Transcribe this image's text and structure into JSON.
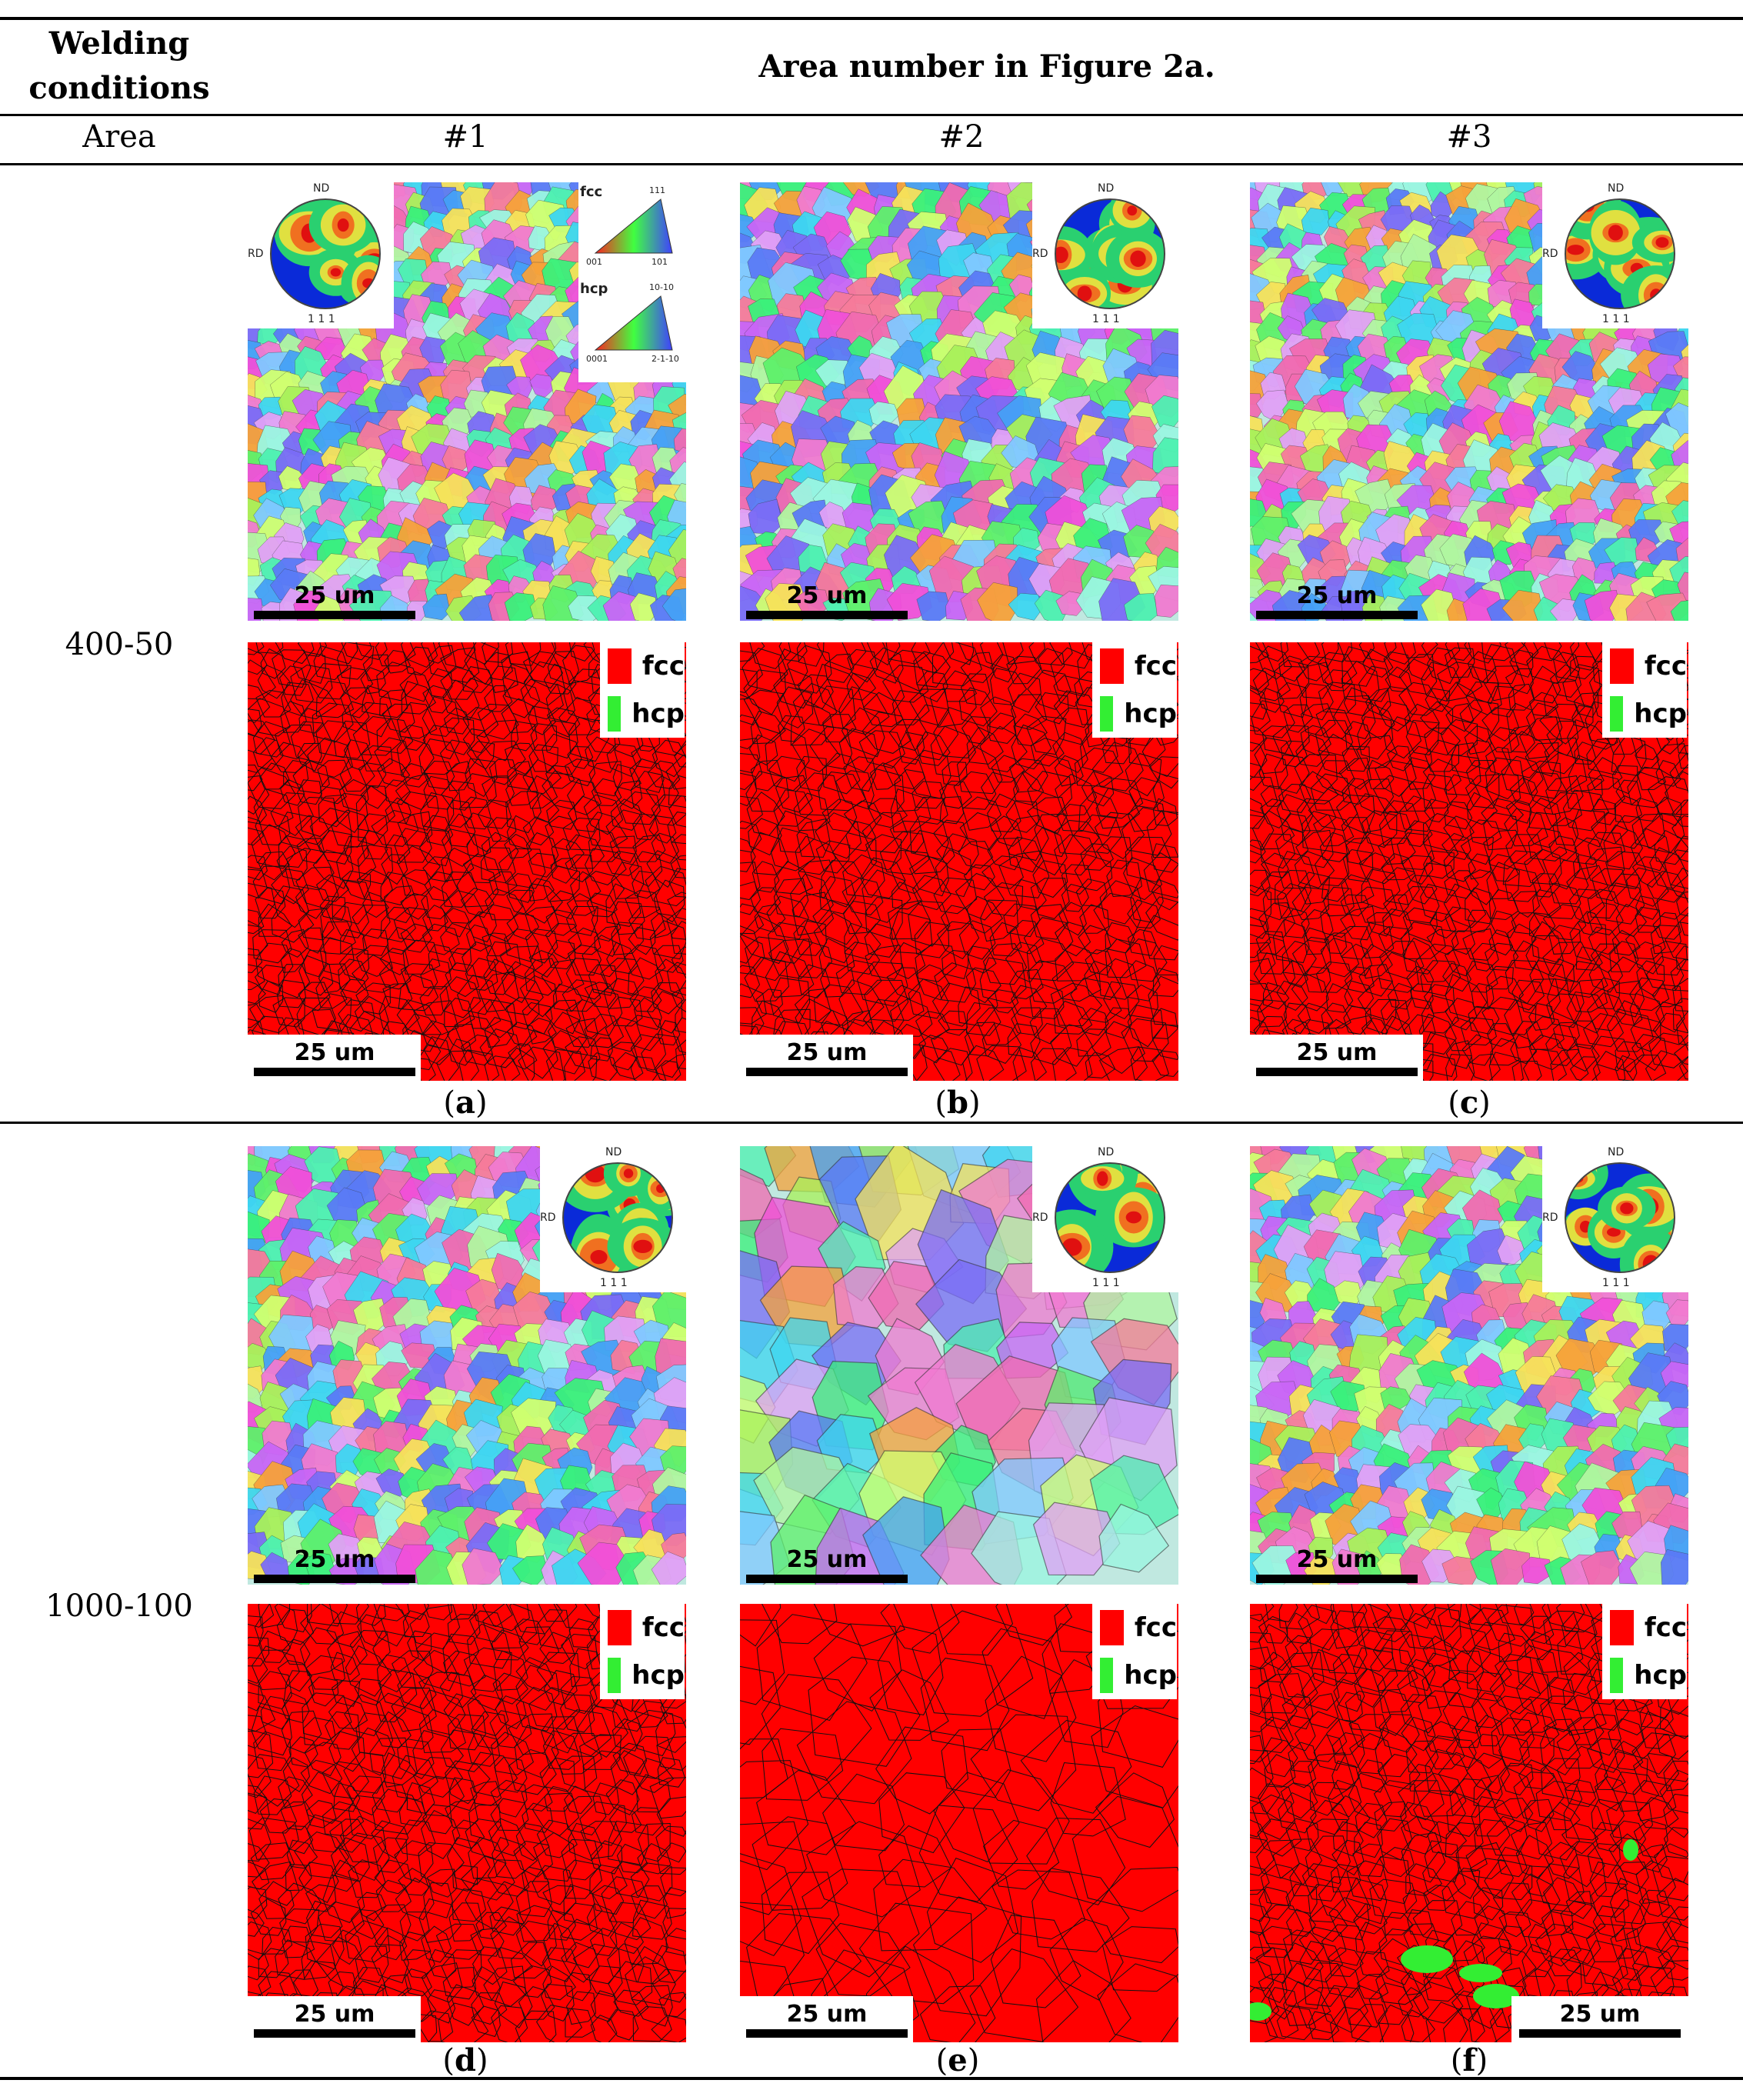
{
  "table": {
    "header_col1": "Welding conditions",
    "header_col2": "Area number in Figure 2a.",
    "area_label": "Area",
    "areas": [
      "#1",
      "#2",
      "#3"
    ]
  },
  "rows": [
    {
      "condition": "400-50",
      "captions": [
        "a",
        "b",
        "c"
      ]
    },
    {
      "condition": "1000-100",
      "captions": [
        "d",
        "e",
        "f"
      ]
    }
  ],
  "panel_labels": {
    "scale": "25 um",
    "fcc": "fcc",
    "hcp": "hcp",
    "pole_nd": "ND",
    "pole_rd": "RD",
    "pole_plane": "1 1 1",
    "ipf_fcc_label": "fcc",
    "ipf_hcp_label": "hcp",
    "ipf_fcc_corners": [
      "111",
      "001",
      "101"
    ],
    "ipf_hcp_corners": [
      "10-10",
      "0001",
      "2-1-10"
    ]
  },
  "colors": {
    "fcc": "#ff0000",
    "hcp": "#33ee33",
    "rule": "#000000"
  }
}
